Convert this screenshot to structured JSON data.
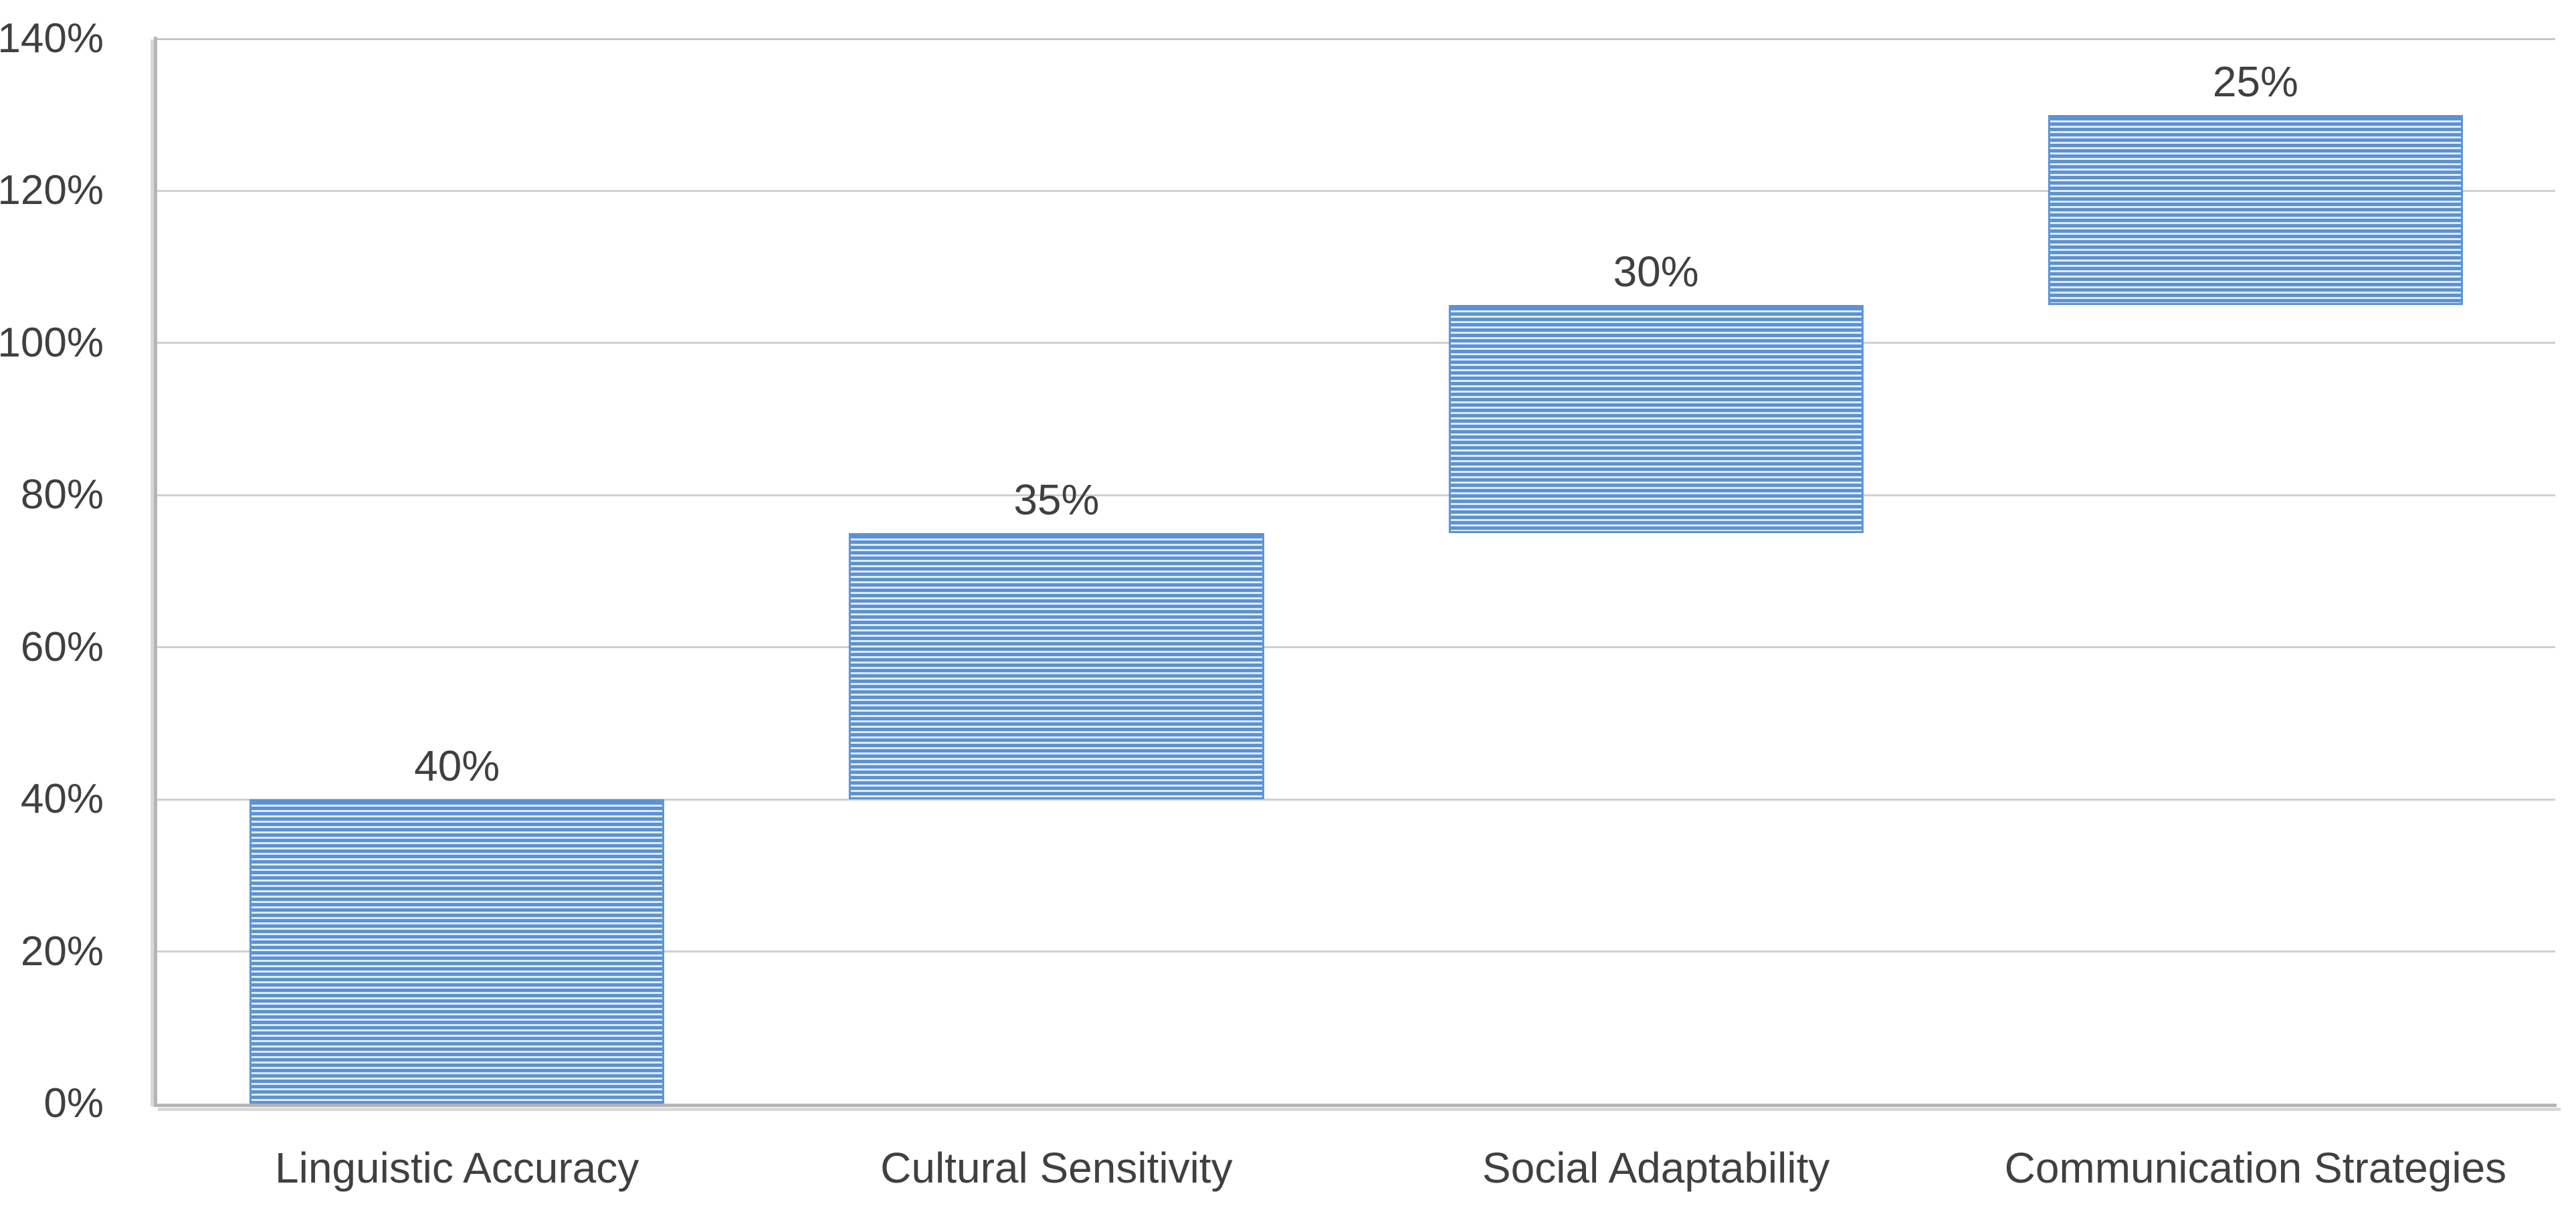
{
  "chart_data": {
    "type": "bar",
    "subtype": "waterfall",
    "title": "",
    "categories": [
      "Linguistic Accuracy",
      "Cultural Sensitivity",
      "Social Adaptability",
      "Communication Strategies"
    ],
    "series": [
      {
        "name": "increment",
        "values": [
          40,
          35,
          30,
          25
        ]
      }
    ],
    "segments": [
      {
        "category": "Linguistic Accuracy",
        "start": 0,
        "end": 40,
        "label": "40%"
      },
      {
        "category": "Cultural Sensitivity",
        "start": 40,
        "end": 75,
        "label": "35%"
      },
      {
        "category": "Social Adaptability",
        "start": 75,
        "end": 105,
        "label": "30%"
      },
      {
        "category": "Communication Strategies",
        "start": 105,
        "end": 130,
        "label": "25%"
      }
    ],
    "xlabel": "",
    "ylabel": "",
    "ylim": [
      0,
      140
    ],
    "yticks": [
      0,
      20,
      40,
      60,
      80,
      100,
      120,
      140
    ],
    "ytick_labels": [
      "0%",
      "20%",
      "40%",
      "60%",
      "80%",
      "100%",
      "120%",
      "140%"
    ],
    "grid": true,
    "legend_position": "none",
    "bar_fill_pattern": "light-horizontal-stripes",
    "data_label_position": "outside-end"
  },
  "colors": {
    "stripe_dark": "#5b92d3",
    "stripe_light": "#e1ebf8",
    "bar_border": "#5b92d3",
    "gridline": "#d0d0d0",
    "gridline_top": "#c6c6c6",
    "axis_line": "#b5b5b5",
    "axis_shadow": "#d8d8d8",
    "label_text": "#404040",
    "background": "#ffffff"
  }
}
